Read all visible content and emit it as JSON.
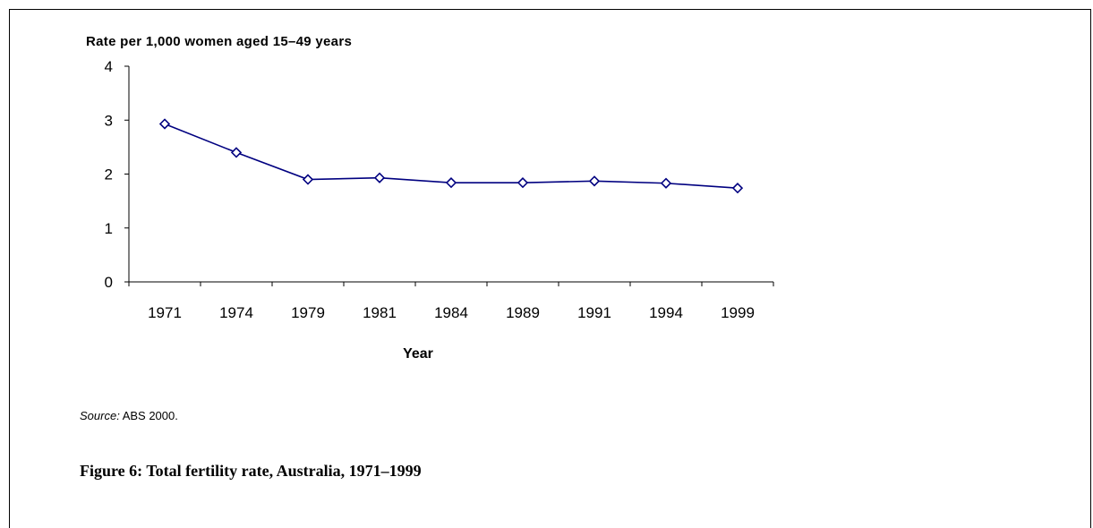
{
  "chart_data": {
    "type": "line",
    "ylabel": "Rate per 1,000 women aged 15–49 years",
    "xlabel": "Year",
    "categories": [
      "1971",
      "1974",
      "1979",
      "1981",
      "1984",
      "1989",
      "1991",
      "1994",
      "1999"
    ],
    "series": [
      {
        "values": [
          2.93,
          2.4,
          1.9,
          1.93,
          1.84,
          1.84,
          1.87,
          1.83,
          1.74
        ]
      }
    ],
    "ylim": [
      0,
      4
    ],
    "yticks": [
      "0",
      "1",
      "2",
      "3",
      "4"
    ],
    "grid": false,
    "line_color": "#000080"
  },
  "source": {
    "prefix": "Source:",
    "text": " ABS 2000."
  },
  "caption": "Figure 6: Total fertility rate, Australia, 1971–1999"
}
